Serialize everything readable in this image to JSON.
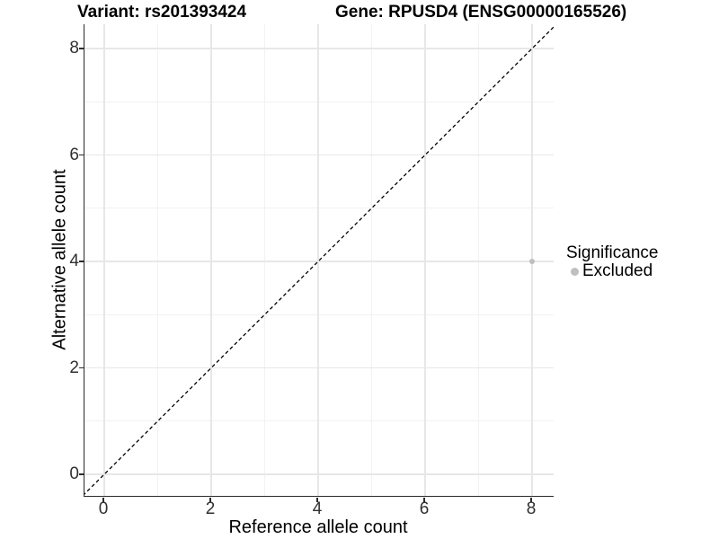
{
  "chart_data": {
    "type": "scatter",
    "titles": {
      "variant": "Variant: rs201393424",
      "gene": "Gene: RPUSD4 (ENSG00000165526)"
    },
    "xlabel": "Reference allele count",
    "ylabel": "Alternative allele count",
    "xlim": [
      -0.4,
      8.45
    ],
    "ylim": [
      -0.4,
      8.45
    ],
    "x_ticks": [
      0,
      2,
      4,
      6,
      8
    ],
    "y_ticks": [
      0,
      2,
      4,
      6,
      8
    ],
    "x_minor_gridlines": [
      1,
      3,
      5,
      7
    ],
    "y_minor_gridlines": [
      1,
      3,
      5,
      7
    ],
    "grid": "on",
    "legend_position": "right",
    "identity_line": {
      "equation": "y = x",
      "style": "dashed",
      "color": "#000000"
    },
    "points": [
      {
        "x": 8,
        "y": 4,
        "series": "Excluded",
        "color": "#bfbfbf",
        "radius_px": 3
      }
    ],
    "legend": {
      "title": "Significance",
      "items": [
        {
          "label": "Excluded",
          "color": "#bfbfbf"
        }
      ]
    },
    "colors": {
      "background": "#ffffff",
      "axis_line": "#2b2b2b",
      "grid_major": "#e7e7e7",
      "grid_minor": "#f2f2f2",
      "tick_text": "#303030"
    }
  }
}
